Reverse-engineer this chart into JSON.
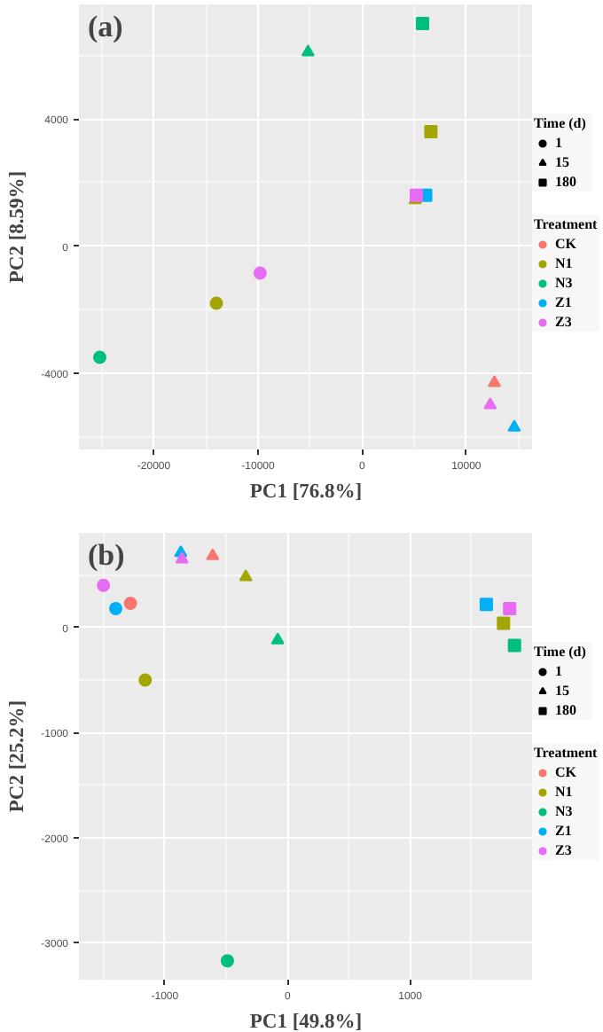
{
  "chart_data": [
    {
      "type": "scatter",
      "title": "(a)",
      "xlabel": "PC1 [76.8%]",
      "ylabel": "PC2 [8.59%]",
      "xlim": [
        -27200,
        16400
      ],
      "ylim": [
        -6400,
        7600
      ],
      "xticks": [
        -20000,
        -10000,
        0,
        10000
      ],
      "yticks": [
        -4000,
        0,
        4000
      ],
      "grid": true,
      "legend": "right",
      "legend_title": [
        "Time (d)",
        "Treatment"
      ],
      "series": [
        {
          "name": "1",
          "marker": "circle",
          "color": "#000000"
        },
        {
          "name": "15",
          "marker": "triangle",
          "color": "#000000"
        },
        {
          "name": "180",
          "marker": "square",
          "color": "#000000"
        },
        {
          "name": "CK",
          "color": "#f8766d",
          "x": [
            12700
          ],
          "values": [
            -4300
          ],
          "marker": [
            "triangle"
          ]
        },
        {
          "name": "N1",
          "color": "#a3a500",
          "x": [
            -14000,
            5100,
            6600
          ],
          "values": [
            -1800,
            1450,
            3600
          ],
          "marker": [
            "circle",
            "triangle",
            "square"
          ]
        },
        {
          "name": "N3",
          "color": "#00bf7d",
          "x": [
            -25200,
            -5200,
            5800
          ],
          "values": [
            -3500,
            6100,
            7000
          ],
          "marker": [
            "circle",
            "triangle",
            "square"
          ]
        },
        {
          "name": "Z1",
          "color": "#00b0f6",
          "x": [
            14600,
            6100
          ],
          "values": [
            -5700,
            1600
          ],
          "marker": [
            "triangle",
            "square"
          ]
        },
        {
          "name": "Z3",
          "color": "#e76bf3",
          "x": [
            -9800,
            12300,
            5200
          ],
          "values": [
            -850,
            -5000,
            1600
          ],
          "marker": [
            "circle",
            "triangle",
            "square"
          ]
        }
      ]
    },
    {
      "type": "scatter",
      "title": "(b)",
      "xlabel": "PC1 [49.8%]",
      "ylabel": "PC2 [25.2%]",
      "xlim": [
        -1700,
        2000
      ],
      "ylim": [
        -3350,
        900
      ],
      "xticks": [
        -1000,
        0,
        1000
      ],
      "yticks": [
        -3000,
        -2000,
        -1000,
        0
      ],
      "grid": true,
      "legend": "right",
      "legend_title": [
        "Time (d)",
        "Treatment"
      ],
      "series": [
        {
          "name": "1",
          "marker": "circle",
          "color": "#000000"
        },
        {
          "name": "15",
          "marker": "triangle",
          "color": "#000000"
        },
        {
          "name": "180",
          "marker": "square",
          "color": "#000000"
        },
        {
          "name": "CK",
          "color": "#f8766d",
          "x": [
            -1280,
            -610
          ],
          "values": [
            230,
            680
          ],
          "marker": [
            "circle",
            "triangle"
          ]
        },
        {
          "name": "N1",
          "color": "#a3a500",
          "x": [
            -1160,
            -340,
            1760
          ],
          "values": [
            -500,
            480,
            40
          ],
          "marker": [
            "circle",
            "triangle",
            "square"
          ]
        },
        {
          "name": "N3",
          "color": "#00bf7d",
          "x": [
            -490,
            -80,
            1850
          ],
          "values": [
            -3170,
            -120,
            -170
          ],
          "marker": [
            "circle",
            "triangle",
            "square"
          ]
        },
        {
          "name": "Z1",
          "color": "#00b0f6",
          "x": [
            -1400,
            -870,
            1620
          ],
          "values": [
            180,
            710,
            220
          ],
          "marker": [
            "circle",
            "triangle",
            "square"
          ]
        },
        {
          "name": "Z3",
          "color": "#e76bf3",
          "x": [
            -1500,
            -860,
            1810
          ],
          "values": [
            400,
            650,
            180
          ],
          "marker": [
            "circle",
            "triangle",
            "square"
          ]
        }
      ]
    }
  ]
}
